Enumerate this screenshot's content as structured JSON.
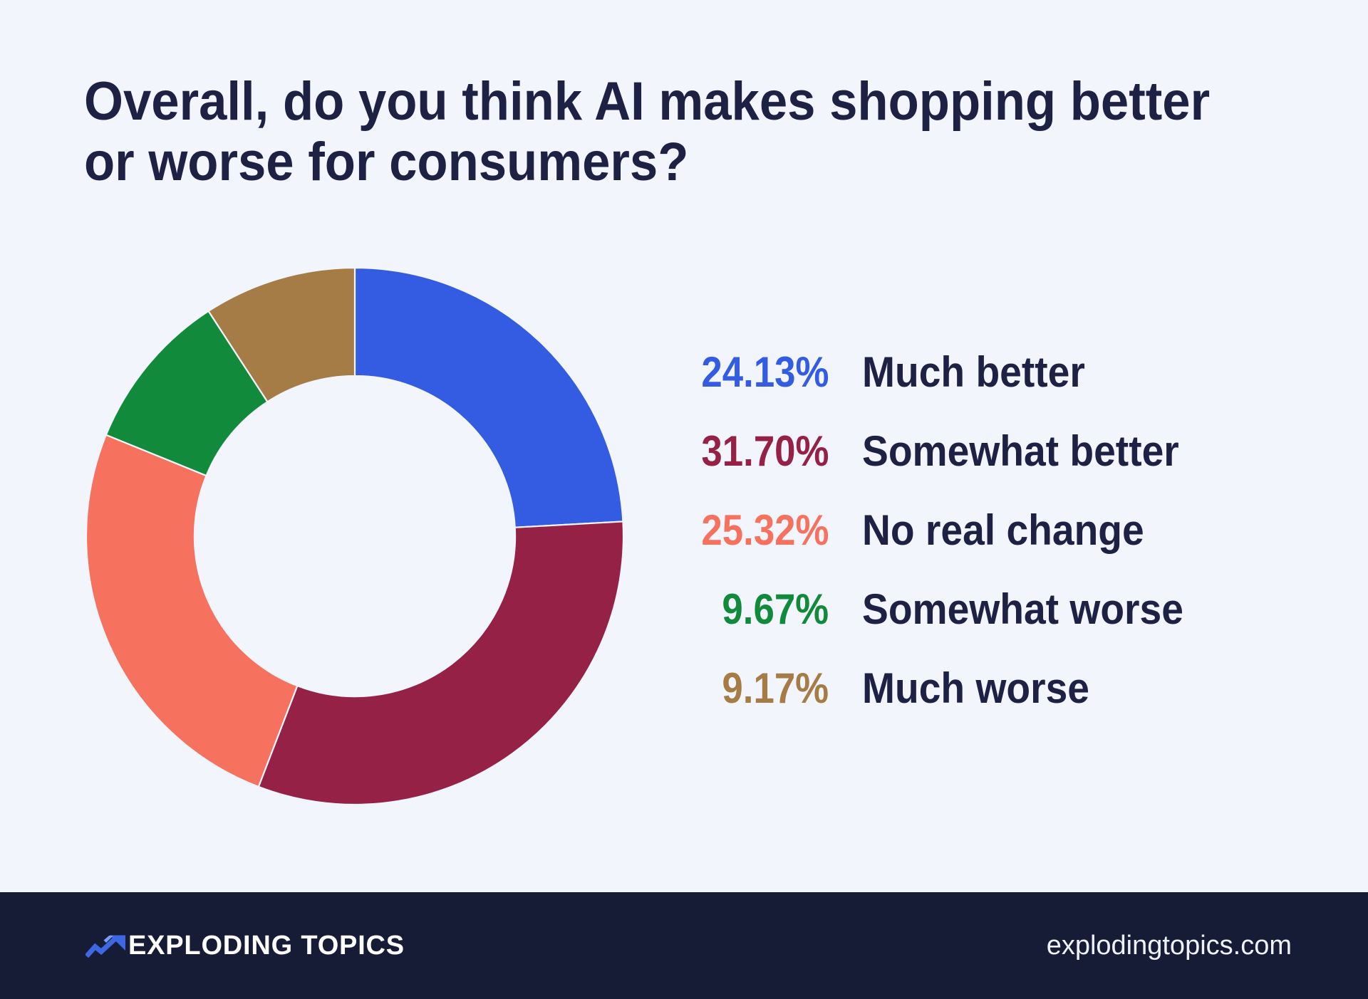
{
  "title": "Overall, do you think AI makes shopping better\nor worse for consumers?",
  "chart_data": {
    "type": "pie",
    "variant": "donut",
    "title": "Overall, do you think AI makes shopping better or worse for consumers?",
    "categories": [
      "Much better",
      "Somewhat better",
      "No real change",
      "Somewhat worse",
      "Much worse"
    ],
    "values": [
      24.13,
      31.7,
      25.32,
      9.67,
      9.17
    ],
    "value_labels": [
      "24.13%",
      "31.70%",
      "25.32%",
      "9.67%",
      "9.17%"
    ],
    "colors": [
      "#345CE2",
      "#952147",
      "#F7715F",
      "#128A3C",
      "#A57B46"
    ],
    "start_angle_deg": 0,
    "direction": "clockwise",
    "inner_radius_ratio": 0.597,
    "legend_position": "right",
    "grid": false
  },
  "footer": {
    "brand": "EXPLODING TOPICS",
    "website": "explodingtopics.com"
  },
  "theme": {
    "background": "#F2F5FC",
    "text_dark": "#1D2245",
    "footer_bg": "#161B36",
    "logo_blue": "#3E67E2",
    "logo_blue_light": "#7C9CEF"
  }
}
